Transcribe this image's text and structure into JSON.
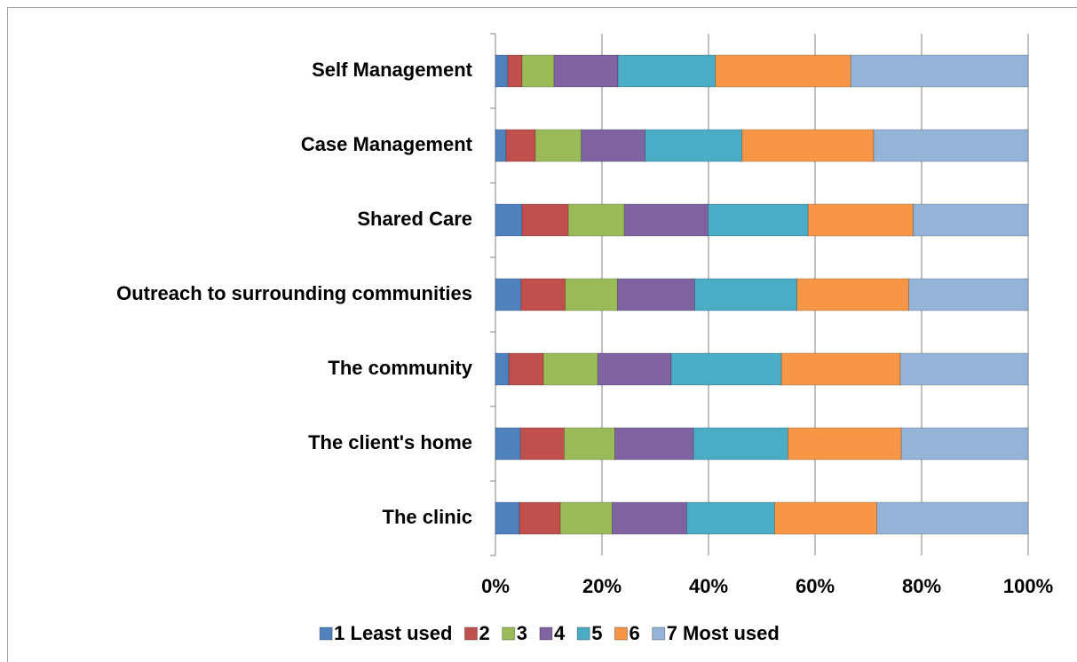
{
  "chart_data": {
    "type": "stacked_barh",
    "categories": [
      "Self Management",
      "Case Management",
      "Shared Care",
      "Outreach to surrounding communities",
      "The community",
      "The client's home",
      "The clinic"
    ],
    "series": [
      {
        "name": "1 Least used",
        "color": "#4f81bd",
        "values": [
          2.3,
          2,
          5,
          4.8,
          2.5,
          4.7,
          4.5
        ]
      },
      {
        "name": "2",
        "color": "#c0504d",
        "values": [
          2.7,
          5.5,
          8.7,
          8.3,
          6.5,
          8.2,
          7.7
        ]
      },
      {
        "name": "3",
        "color": "#9bbb59",
        "values": [
          6,
          8.6,
          10.5,
          9.8,
          10.2,
          9.5,
          9.7
        ]
      },
      {
        "name": "4",
        "color": "#8064a2",
        "values": [
          12,
          12,
          15.7,
          14.5,
          13.8,
          14.8,
          14
        ]
      },
      {
        "name": "5",
        "color": "#4bacc6",
        "values": [
          18.3,
          18.2,
          18.8,
          19.2,
          20.7,
          17.7,
          16.5
        ]
      },
      {
        "name": "6",
        "color": "#f79646",
        "values": [
          25.4,
          24.7,
          19.7,
          21,
          22.3,
          21.3,
          19.2
        ]
      },
      {
        "name": "7 Most used",
        "color": "#95b3d7",
        "values": [
          33.3,
          29,
          21.6,
          22.4,
          24,
          23.8,
          28.4
        ]
      }
    ],
    "xlim": [
      0,
      100
    ],
    "xticks": [
      {
        "value": 0,
        "label": "0%"
      },
      {
        "value": 20,
        "label": "20%"
      },
      {
        "value": 40,
        "label": "40%"
      },
      {
        "value": 60,
        "label": "60%"
      },
      {
        "value": 80,
        "label": "80%"
      },
      {
        "value": 100,
        "label": "100%"
      }
    ],
    "grid": true,
    "legend": "bottom"
  }
}
